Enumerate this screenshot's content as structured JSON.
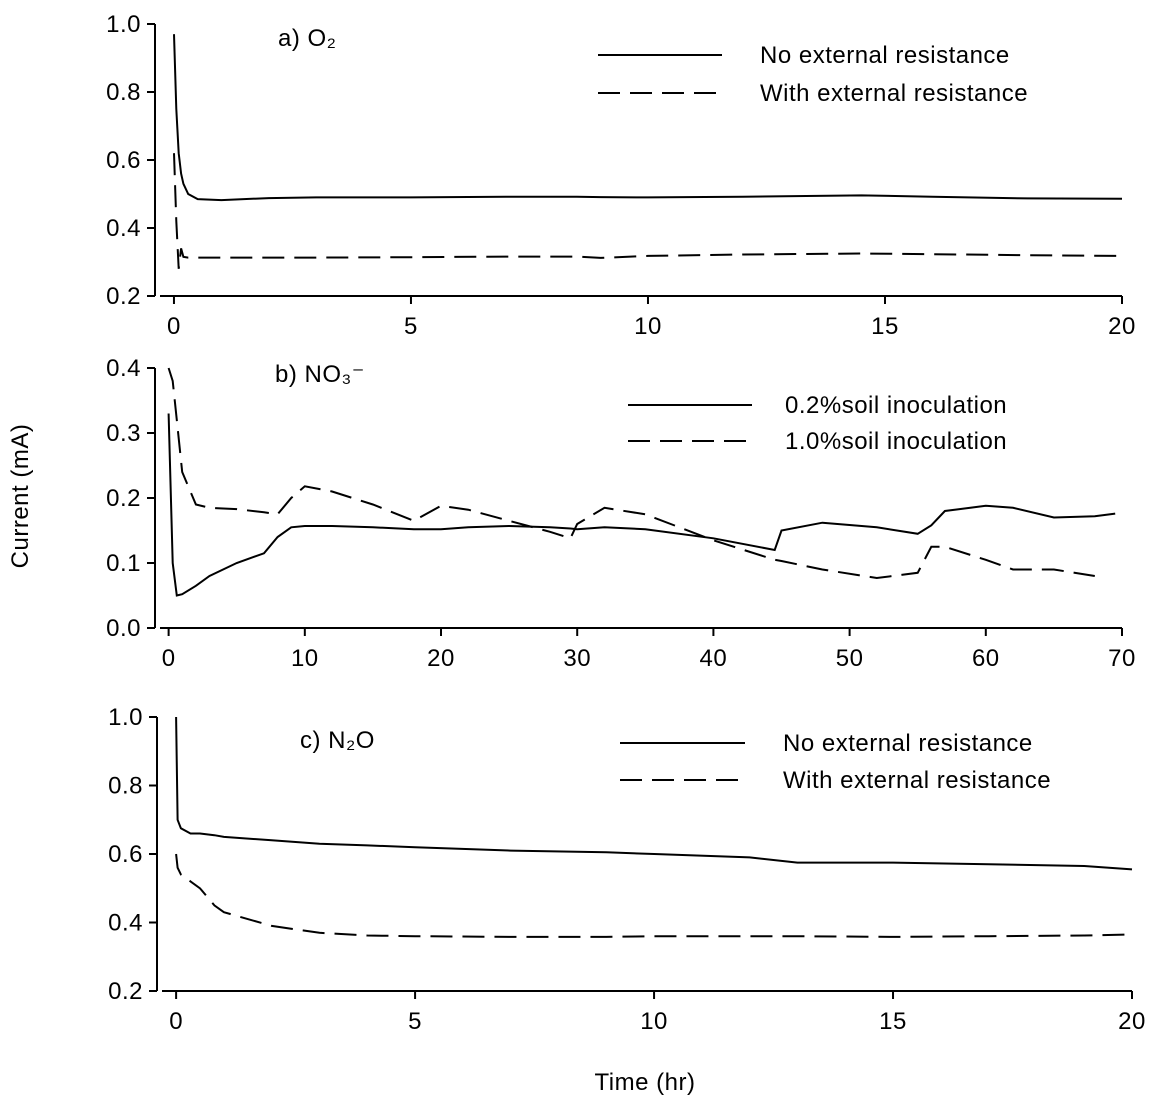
{
  "chart_data": [
    {
      "type": "line",
      "title": "a) O₂",
      "legend": "upper right",
      "xlim": [
        -0.4,
        20
      ],
      "xticks": [
        0,
        5,
        10,
        15,
        20
      ],
      "ylim": [
        0.2,
        1
      ],
      "yticks": [
        0.2,
        0.4,
        0.6,
        0.8,
        {
          "value": 1,
          "label": "1.0"
        }
      ],
      "x": [
        0,
        0.05,
        0.1,
        0.15,
        0.2,
        0.3,
        0.5,
        1,
        2,
        3,
        5,
        7,
        8.5,
        9,
        10,
        12,
        14.5,
        16,
        18,
        20
      ],
      "series": [
        {
          "name": "No external resistance",
          "color": "#000000",
          "dash": "solid",
          "values": [
            0.97,
            0.75,
            0.62,
            0.56,
            0.53,
            0.5,
            0.485,
            0.482,
            0.488,
            0.49,
            0.49,
            0.492,
            0.492,
            0.491,
            0.49,
            0.492,
            0.496,
            0.492,
            0.487,
            0.486
          ]
        },
        {
          "name": "With external resistance",
          "color": "#000000",
          "dash": "dashed",
          "values": [
            0.62,
            0.42,
            0.28,
            0.34,
            0.315,
            0.313,
            0.313,
            0.313,
            0.313,
            0.313,
            0.314,
            0.316,
            0.316,
            0.312,
            0.318,
            0.322,
            0.325,
            0.323,
            0.32,
            0.318
          ]
        }
      ]
    },
    {
      "type": "line",
      "title": "b) NO₃⁻",
      "legend": "upper right",
      "ylabel": "Current (mA)",
      "xlim": [
        -1,
        70
      ],
      "xticks": [
        0,
        10,
        20,
        30,
        40,
        50,
        60,
        70
      ],
      "ylim": [
        0,
        0.4
      ],
      "yticks": [
        {
          "value": 0,
          "label": "0.0"
        },
        0.1,
        0.2,
        0.3,
        0.4
      ],
      "x": [
        0,
        0.3,
        0.6,
        1,
        2,
        3,
        5,
        7,
        8,
        9,
        10,
        12,
        15,
        18,
        20,
        22,
        25,
        28,
        29.5,
        30,
        32,
        35,
        40,
        44.5,
        45,
        48,
        52,
        55,
        56,
        57,
        60,
        62,
        65,
        68,
        69.5
      ],
      "series": [
        {
          "name": "0.2%soil inoculation",
          "color": "#000000",
          "dash": "solid",
          "values": [
            0.33,
            0.1,
            0.05,
            0.052,
            0.065,
            0.08,
            0.1,
            0.115,
            0.14,
            0.155,
            0.157,
            0.157,
            0.155,
            0.152,
            0.152,
            0.155,
            0.157,
            0.155,
            0.153,
            0.152,
            0.155,
            0.152,
            0.138,
            0.12,
            0.15,
            0.162,
            0.155,
            0.145,
            0.158,
            0.18,
            0.188,
            0.185,
            0.17,
            0.172,
            0.176
          ]
        },
        {
          "name": "1.0%soil inoculation",
          "color": "#000000",
          "dash": "dashed",
          "values": [
            0.4,
            0.38,
            0.32,
            0.24,
            0.19,
            0.185,
            0.183,
            0.178,
            0.175,
            0.2,
            0.218,
            0.21,
            0.19,
            0.165,
            0.188,
            0.182,
            0.165,
            0.148,
            0.138,
            0.16,
            0.185,
            0.175,
            0.135,
            0.105,
            0.103,
            0.09,
            0.077,
            0.085,
            0.125,
            0.125,
            0.105,
            0.09,
            0.09,
            0.08,
            null
          ]
        }
      ]
    },
    {
      "type": "line",
      "title": "c) N₂O",
      "legend": "upper right",
      "xlabel": "Time (hr)",
      "xlim": [
        -0.4,
        20
      ],
      "xticks": [
        0,
        5,
        10,
        15,
        20
      ],
      "ylim": [
        0.2,
        1
      ],
      "yticks": [
        0.2,
        0.4,
        0.6,
        0.8,
        {
          "value": 1,
          "label": "1.0"
        }
      ],
      "x": [
        0,
        0.03,
        0.1,
        0.3,
        0.5,
        0.8,
        1,
        2,
        3,
        4,
        5,
        7,
        9,
        10,
        12,
        13,
        15,
        17,
        19,
        20
      ],
      "series": [
        {
          "name": "No external resistance",
          "color": "#000000",
          "dash": "solid",
          "values": [
            1.0,
            0.7,
            0.675,
            0.66,
            0.66,
            0.655,
            0.65,
            0.64,
            0.63,
            0.625,
            0.62,
            0.61,
            0.605,
            0.6,
            0.59,
            0.575,
            0.575,
            0.57,
            0.565,
            0.555
          ]
        },
        {
          "name": "With external resistance",
          "color": "#000000",
          "dash": "dashed",
          "values": [
            0.6,
            0.56,
            0.54,
            0.52,
            0.5,
            0.45,
            0.43,
            0.39,
            0.37,
            0.362,
            0.36,
            0.358,
            0.358,
            0.36,
            0.36,
            0.36,
            0.358,
            0.36,
            0.362,
            0.365
          ]
        }
      ]
    }
  ]
}
